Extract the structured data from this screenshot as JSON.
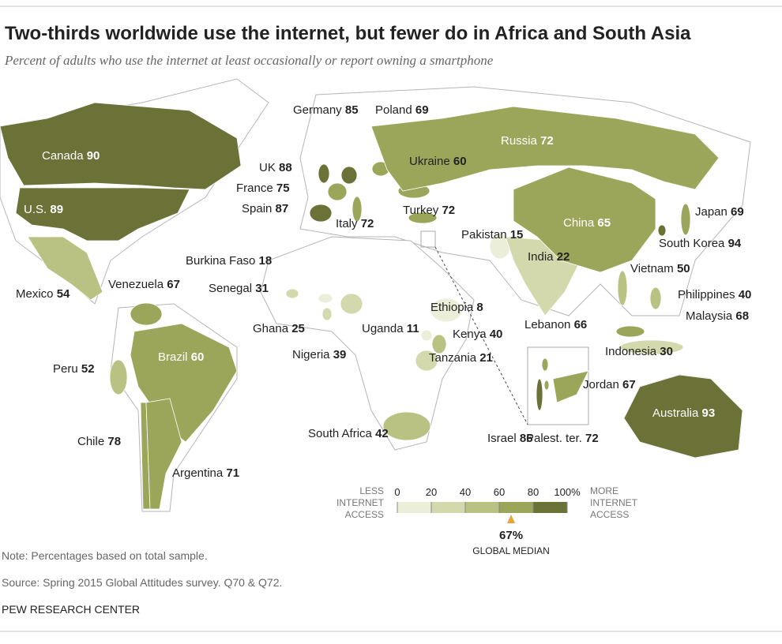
{
  "header": {
    "title": "Two-thirds worldwide use the internet, but fewer do in Africa and South Asia",
    "subtitle": "Percent of adults who use the internet at least occasionally or report owning a smartphone"
  },
  "chart_data": {
    "type": "choropleth",
    "countries": [
      {
        "name": "Canada",
        "value": 90
      },
      {
        "name": "U.S.",
        "value": 89
      },
      {
        "name": "Mexico",
        "value": 54
      },
      {
        "name": "Venezuela",
        "value": 67
      },
      {
        "name": "Peru",
        "value": 52
      },
      {
        "name": "Brazil",
        "value": 60
      },
      {
        "name": "Chile",
        "value": 78
      },
      {
        "name": "Argentina",
        "value": 71
      },
      {
        "name": "Germany",
        "value": 85
      },
      {
        "name": "Poland",
        "value": 69
      },
      {
        "name": "UK",
        "value": 88
      },
      {
        "name": "France",
        "value": 75
      },
      {
        "name": "Spain",
        "value": 87
      },
      {
        "name": "Italy",
        "value": 72
      },
      {
        "name": "Ukraine",
        "value": 60
      },
      {
        "name": "Russia",
        "value": 72
      },
      {
        "name": "Turkey",
        "value": 72
      },
      {
        "name": "Pakistan",
        "value": 15
      },
      {
        "name": "India",
        "value": 22
      },
      {
        "name": "China",
        "value": 65
      },
      {
        "name": "Japan",
        "value": 69
      },
      {
        "name": "South Korea",
        "value": 94
      },
      {
        "name": "Vietnam",
        "value": 50
      },
      {
        "name": "Philippines",
        "value": 40
      },
      {
        "name": "Malaysia",
        "value": 68
      },
      {
        "name": "Indonesia",
        "value": 30
      },
      {
        "name": "Burkina Faso",
        "value": 18
      },
      {
        "name": "Senegal",
        "value": 31
      },
      {
        "name": "Ghana",
        "value": 25
      },
      {
        "name": "Nigeria",
        "value": 39
      },
      {
        "name": "Uganda",
        "value": 11
      },
      {
        "name": "Ethiopia",
        "value": 8
      },
      {
        "name": "Kenya",
        "value": 40
      },
      {
        "name": "Tanzania",
        "value": 21
      },
      {
        "name": "South Africa",
        "value": 42
      },
      {
        "name": "Lebanon",
        "value": 66
      },
      {
        "name": "Jordan",
        "value": 67
      },
      {
        "name": "Israel",
        "value": 86
      },
      {
        "name": "Palest. ter.",
        "value": 72
      },
      {
        "name": "Australia",
        "value": 93
      }
    ],
    "legend": {
      "low_label": [
        "LESS",
        "INTERNET",
        "ACCESS"
      ],
      "high_label": [
        "MORE",
        "INTERNET",
        "ACCESS"
      ],
      "lim": [
        0,
        100
      ],
      "ticks": [
        0,
        20,
        40,
        60,
        80,
        {
          "value": 100,
          "label": "100%"
        }
      ],
      "colors": [
        "#ebeed8",
        "#d3d9ad",
        "#b9c282",
        "#9ca65a",
        "#6b7137"
      ],
      "median": {
        "value": 67,
        "label": "67%"
      },
      "median_label": "GLOBAL MEDIAN"
    }
  },
  "footer": {
    "note": "Note: Percentages based on total sample.",
    "source": "Source: Spring 2015 Global Attitudes survey. Q70 & Q72.",
    "credit": "PEW RESEARCH CENTER"
  }
}
